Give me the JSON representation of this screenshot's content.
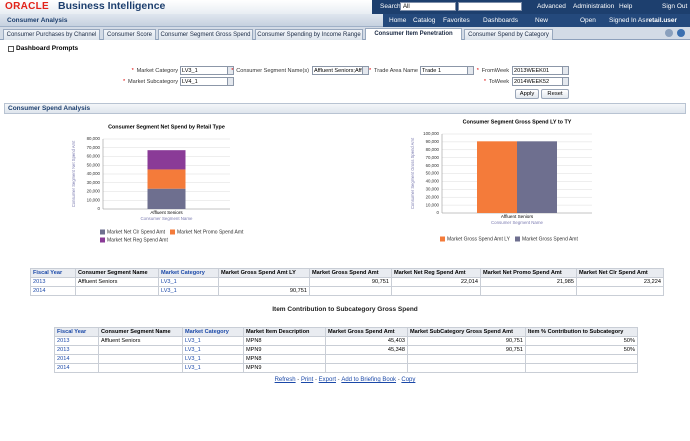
{
  "header": {
    "logo": "ORACLE",
    "product": "Business Intelligence",
    "search_label": "Search",
    "search_scope": "All",
    "links": [
      "Advanced",
      "Administration",
      "Help",
      "Sign Out"
    ]
  },
  "nav": {
    "title": "Consumer Analysis",
    "links": [
      "Home",
      "Catalog",
      "Favorites",
      "Dashboards",
      "New",
      "Open"
    ],
    "signed_in_label": "Signed In As",
    "user": "retail.user"
  },
  "tabs": [
    "Consumer Purchases by Channel",
    "Consumer Score",
    "Consumer Segment Gross Spend",
    "Consumer Spending by Income Range",
    "Consumer Item Penetration",
    "Consumer Spend by Category"
  ],
  "active_tab": 4,
  "prompts": {
    "title": "Dashboard Prompts",
    "fields": [
      {
        "label": "Market Category",
        "value": "LV3_1"
      },
      {
        "label": "Market Subcategory",
        "value": "LV4_1"
      },
      {
        "label": "Consumer Segment Name(s)",
        "value": "Affluent Seniors;Aff"
      },
      {
        "label": "Trade Area Name",
        "value": "Trade 1"
      },
      {
        "label": "FromWeek",
        "value": "2013WEEK01"
      },
      {
        "label": "ToWeek",
        "value": "2014WEEK52"
      }
    ],
    "buttons": [
      "Apply",
      "Reset"
    ]
  },
  "section_title": "Consumer Spend Analysis",
  "chart_data": [
    {
      "type": "bar",
      "stacked": true,
      "title": "Consumer Segment Net Spend by Retail Type",
      "y_label": "Consumer Segment Net Spend Amt",
      "x_label": "Consumer Segment Name",
      "categories": [
        "Affluent Seniors"
      ],
      "series": [
        {
          "name": "Market Net Clr Spend Amt",
          "color": "#6e6f8f",
          "values": [
            23224
          ]
        },
        {
          "name": "Market Net Promo Spend Amt",
          "color": "#f47b3a",
          "values": [
            21985
          ]
        },
        {
          "name": "Market Net Reg Spend Amt",
          "color": "#8a3b97",
          "values": [
            22014
          ]
        }
      ],
      "ylim": [
        0,
        80000
      ],
      "yticks": [
        0,
        {
          "value": 10000,
          "label": "10,000"
        },
        {
          "value": 20000,
          "label": "20,000"
        },
        {
          "value": 30000,
          "label": "30,000"
        },
        {
          "value": 40000,
          "label": "40,000"
        },
        {
          "value": 50000,
          "label": "50,000"
        },
        {
          "value": 60000,
          "label": "60,000"
        },
        {
          "value": 70000,
          "label": "70,000"
        },
        {
          "value": 80000,
          "label": "80,000"
        }
      ],
      "grid": true
    },
    {
      "type": "bar",
      "stacked": false,
      "title": "Consumer Segment Gross Spend LY to TY",
      "y_label": "Consumer Segment Gross Spend Amt",
      "x_label": "Consumer Segment Name",
      "categories": [
        "Affluent Seniors"
      ],
      "series": [
        {
          "name": "Market Gross Spend Amt LY",
          "color": "#f47b3a",
          "values": [
            90751
          ]
        },
        {
          "name": "Market Gross Spend Amt",
          "color": "#6e6f8f",
          "values": [
            90751
          ]
        }
      ],
      "ylim": [
        0,
        100000
      ],
      "yticks": [
        0,
        {
          "value": 10000,
          "label": "10,000"
        },
        {
          "value": 20000,
          "label": "20,000"
        },
        {
          "value": 30000,
          "label": "30,000"
        },
        {
          "value": 40000,
          "label": "40,000"
        },
        {
          "value": 50000,
          "label": "50,000"
        },
        {
          "value": 60000,
          "label": "60,000"
        },
        {
          "value": 70000,
          "label": "70,000"
        },
        {
          "value": 80000,
          "label": "80,000"
        },
        {
          "value": 90000,
          "label": "90,000"
        },
        {
          "value": 100000,
          "label": "100,000"
        }
      ],
      "grid": true
    }
  ],
  "table1": {
    "columns": [
      "Fiscal Year",
      "Consumer Segment Name",
      "Market Category",
      "Market Gross Spend Amt LY",
      "Market Gross Spend Amt",
      "Market Net Reg Spend Amt",
      "Market Net Promo Spend Amt",
      "Market Net Clr Spend Amt"
    ],
    "rows": [
      [
        "2013",
        "Affluent Seniors",
        "LV3_1",
        null,
        "90,751",
        "22,014",
        "21,985",
        "23,224"
      ],
      [
        "2014",
        null,
        "LV3_1",
        "90,751",
        null,
        null,
        null,
        null
      ]
    ]
  },
  "table2": {
    "title": "Item Contribution to Subcategory Gross Spend",
    "columns": [
      "Fiscal Year",
      "Consumer Segment Name",
      "Market Category",
      "Market Item Description",
      "Market Gross Spend Amt",
      "Market SubCategory Gross Spend Amt",
      "Item % Contribution to Subcategory"
    ],
    "rows": [
      [
        "2013",
        "Affluent Seniors",
        "LV3_1",
        "MPN8",
        "45,403",
        "90,751",
        "50%"
      ],
      [
        "2013",
        null,
        "LV3_1",
        "MPN9",
        "45,348",
        "90,751",
        "50%"
      ],
      [
        "2014",
        null,
        "LV3_1",
        "MPN8",
        null,
        null,
        null
      ],
      [
        "2014",
        null,
        "LV3_1",
        "MPN9",
        null,
        null,
        null
      ]
    ]
  },
  "links": [
    "Refresh",
    "Print",
    "Export",
    "Add to Briefing Book",
    "Copy"
  ]
}
